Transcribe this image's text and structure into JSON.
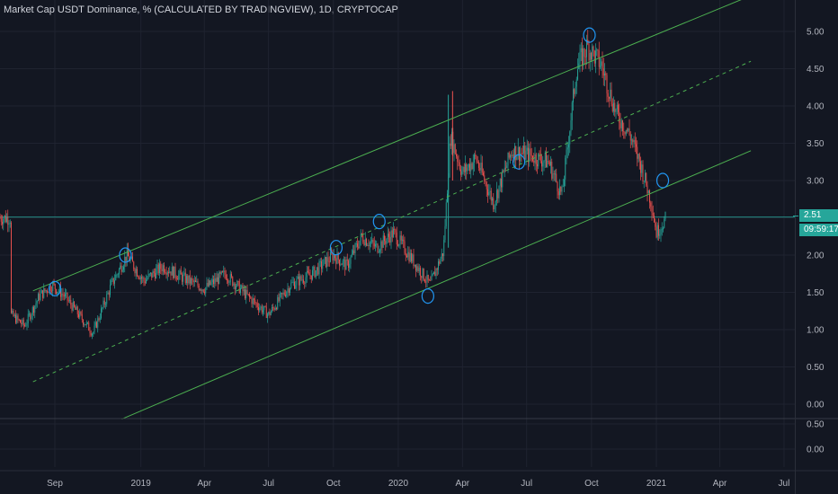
{
  "title": "Market Cap USDT Dominance, % (CALCULATED BY TRADINGVIEW), 1D, CRYPTOCAP",
  "colors": {
    "background": "#131722",
    "grid": "#1f2330",
    "up": "#26a69a",
    "down": "#ef5350",
    "channel": "#4caf50",
    "marker": "#2196f3",
    "hline": "#26a69a"
  },
  "price_badge": {
    "value": "2.51",
    "countdown": "09:59:17"
  },
  "chart_data": {
    "type": "candlestick",
    "title": "Market Cap USDT Dominance, % (CALCULATED BY TRADINGVIEW), 1D, CRYPTOCAP",
    "x_ticks": [
      "Sep",
      "2019",
      "Apr",
      "Jul",
      "Oct",
      "2020",
      "Apr",
      "Jul",
      "Oct",
      "2021",
      "Apr",
      "Jul"
    ],
    "y_ticks": [
      "5.00",
      "4.50",
      "4.00",
      "3.50",
      "3.00",
      "2.50",
      "2.00",
      "1.50",
      "1.00",
      "0.50",
      "0.00"
    ],
    "sub_y_ticks": [
      "0.50",
      "0.00"
    ],
    "ylim": [
      -0.1,
      5.3
    ],
    "last_value": 2.51,
    "horizontal_line": 2.51,
    "grid": true,
    "series": [
      {
        "values": [
          {
            "x": "2018-07-01",
            "y": 1.2
          },
          {
            "x": "2018-07-20",
            "y": 1.05
          },
          {
            "x": "2018-08-10",
            "y": 1.45
          },
          {
            "x": "2018-08-28",
            "y": 1.6
          },
          {
            "x": "2018-09-15",
            "y": 1.45
          },
          {
            "x": "2018-10-05",
            "y": 1.2
          },
          {
            "x": "2018-10-25",
            "y": 0.95
          },
          {
            "x": "2018-11-20",
            "y": 1.6
          },
          {
            "x": "2018-12-12",
            "y": 2.0
          },
          {
            "x": "2019-01-05",
            "y": 1.65
          },
          {
            "x": "2019-02-01",
            "y": 1.85
          },
          {
            "x": "2019-03-01",
            "y": 1.7
          },
          {
            "x": "2019-04-01",
            "y": 1.55
          },
          {
            "x": "2019-05-01",
            "y": 1.75
          },
          {
            "x": "2019-06-01",
            "y": 1.45
          },
          {
            "x": "2019-07-01",
            "y": 1.2
          },
          {
            "x": "2019-08-01",
            "y": 1.6
          },
          {
            "x": "2019-09-01",
            "y": 1.75
          },
          {
            "x": "2019-10-01",
            "y": 2.0
          },
          {
            "x": "2019-10-20",
            "y": 1.85
          },
          {
            "x": "2019-11-10",
            "y": 2.25
          },
          {
            "x": "2019-12-01",
            "y": 2.1
          },
          {
            "x": "2019-12-25",
            "y": 2.3
          },
          {
            "x": "2020-01-20",
            "y": 1.95
          },
          {
            "x": "2020-02-15",
            "y": 1.6
          },
          {
            "x": "2020-03-05",
            "y": 2.05
          },
          {
            "x": "2020-03-15",
            "y": 3.6
          },
          {
            "x": "2020-04-01",
            "y": 3.1
          },
          {
            "x": "2020-04-20",
            "y": 3.3
          },
          {
            "x": "2020-05-15",
            "y": 2.7
          },
          {
            "x": "2020-06-10",
            "y": 3.4
          },
          {
            "x": "2020-07-01",
            "y": 3.35
          },
          {
            "x": "2020-08-01",
            "y": 3.25
          },
          {
            "x": "2020-08-20",
            "y": 2.8
          },
          {
            "x": "2020-09-10",
            "y": 4.5
          },
          {
            "x": "2020-09-25",
            "y": 4.8
          },
          {
            "x": "2020-10-15",
            "y": 4.55
          },
          {
            "x": "2020-11-05",
            "y": 3.9
          },
          {
            "x": "2020-11-25",
            "y": 3.6
          },
          {
            "x": "2020-12-10",
            "y": 3.2
          },
          {
            "x": "2020-12-25",
            "y": 2.7
          },
          {
            "x": "2021-01-01",
            "y": 2.3
          },
          {
            "x": "2021-01-15",
            "y": 2.5
          }
        ]
      }
    ],
    "channel_lines": [
      {
        "style": "solid",
        "from": {
          "x": "2018-08-01",
          "y": 1.52
        },
        "to": {
          "x": "2021-05-15",
          "y": 5.48
        }
      },
      {
        "style": "dashed",
        "from": {
          "x": "2018-08-01",
          "y": 0.3
        },
        "to": {
          "x": "2021-05-15",
          "y": 4.6
        }
      },
      {
        "style": "solid",
        "from": {
          "x": "2018-12-05",
          "y": -0.2
        },
        "to": {
          "x": "2021-05-15",
          "y": 3.4
        }
      }
    ],
    "markers": [
      {
        "x": "2018-09-01",
        "y": 1.55
      },
      {
        "x": "2018-12-10",
        "y": 2.0
      },
      {
        "x": "2019-10-05",
        "y": 2.1
      },
      {
        "x": "2019-12-05",
        "y": 2.45
      },
      {
        "x": "2020-02-12",
        "y": 1.45
      },
      {
        "x": "2020-06-20",
        "y": 3.25
      },
      {
        "x": "2020-09-28",
        "y": 4.95
      },
      {
        "x": "2021-01-10",
        "y": 3.0
      }
    ]
  }
}
